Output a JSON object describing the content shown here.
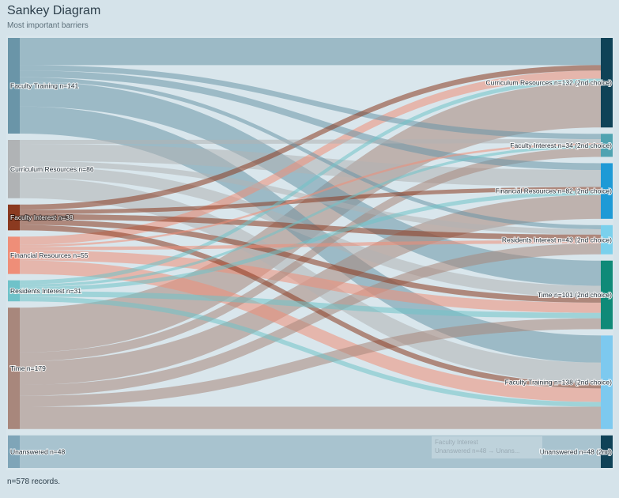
{
  "header": {
    "title": "Sankey Diagram",
    "subtitle": "Most important barriers"
  },
  "footer": {
    "records": "n=578 records."
  },
  "tooltip": {
    "line1": "Faculty Interest",
    "line2": "Unanswered n=48 → Unans..."
  },
  "chart_data": {
    "type": "sankey",
    "total": 578,
    "sources": [
      {
        "id": "s_ft",
        "label": "Faculty Training n=141",
        "value": 141,
        "color": "#6a95a8"
      },
      {
        "id": "s_cr",
        "label": "Curriculum Resources n=86",
        "value": 86,
        "color": "#b0b3b5"
      },
      {
        "id": "s_fi",
        "label": "Faculty Interest n=38",
        "value": 38,
        "color": "#8b3a20",
        "dark": true
      },
      {
        "id": "s_fr",
        "label": "Financial Resources n=55",
        "value": 55,
        "color": "#ef8e78"
      },
      {
        "id": "s_ri",
        "label": "Residents Interest n=31",
        "value": 31,
        "color": "#6fc2c9"
      },
      {
        "id": "s_t",
        "label": "Time n=179",
        "value": 179,
        "color": "#a8877c"
      },
      {
        "id": "s_u",
        "label": "Unanswered n=48",
        "value": 48,
        "color": "#7fa5b8"
      }
    ],
    "targets": [
      {
        "id": "t_cr",
        "label": "Curriculum Resources n=132 (2nd choice)",
        "value": 132,
        "color": "#0f4257"
      },
      {
        "id": "t_fi",
        "label": "Faculty Interest n=34 (2nd choice)",
        "value": 34,
        "color": "#4fa3b1"
      },
      {
        "id": "t_fr",
        "label": "Financial Resources n=82 (2nd choice)",
        "value": 82,
        "color": "#1e9ad6"
      },
      {
        "id": "t_ri",
        "label": "Residents Interest n=43 (2nd choice)",
        "value": 43,
        "color": "#7ad0ec"
      },
      {
        "id": "t_t",
        "label": "Time n=101 (2nd choice)",
        "value": 101,
        "color": "#0f8a78"
      },
      {
        "id": "t_ft",
        "label": "Faculty Training n=138 (2nd choice)",
        "value": 138,
        "color": "#7dc9ef"
      },
      {
        "id": "t_u",
        "label": "Unanswered n=48 (2nd)",
        "value": 48,
        "color": "#0f4257"
      }
    ],
    "flows": [
      {
        "source": "s_ft",
        "target": "t_cr",
        "value": 40
      },
      {
        "source": "s_ft",
        "target": "t_fi",
        "value": 8
      },
      {
        "source": "s_ft",
        "target": "t_fr",
        "value": 10
      },
      {
        "source": "s_ft",
        "target": "t_ri",
        "value": 6
      },
      {
        "source": "s_ft",
        "target": "t_t",
        "value": 37
      },
      {
        "source": "s_ft",
        "target": "t_ft",
        "value": 40
      },
      {
        "source": "s_cr",
        "target": "t_fi",
        "value": 6
      },
      {
        "source": "s_cr",
        "target": "t_fr",
        "value": 25
      },
      {
        "source": "s_cr",
        "target": "t_ri",
        "value": 8
      },
      {
        "source": "s_cr",
        "target": "t_t",
        "value": 17
      },
      {
        "source": "s_cr",
        "target": "t_ft",
        "value": 30
      },
      {
        "source": "s_fi",
        "target": "t_cr",
        "value": 8
      },
      {
        "source": "s_fi",
        "target": "t_fr",
        "value": 6
      },
      {
        "source": "s_fi",
        "target": "t_ri",
        "value": 8
      },
      {
        "source": "s_fi",
        "target": "t_t",
        "value": 8
      },
      {
        "source": "s_fi",
        "target": "t_ft",
        "value": 8
      },
      {
        "source": "s_fr",
        "target": "t_cr",
        "value": 12
      },
      {
        "source": "s_fr",
        "target": "t_fi",
        "value": 3
      },
      {
        "source": "s_fr",
        "target": "t_ri",
        "value": 5
      },
      {
        "source": "s_fr",
        "target": "t_t",
        "value": 15
      },
      {
        "source": "s_fr",
        "target": "t_ft",
        "value": 20
      },
      {
        "source": "s_ri",
        "target": "t_cr",
        "value": 6
      },
      {
        "source": "s_ri",
        "target": "t_fi",
        "value": 4
      },
      {
        "source": "s_ri",
        "target": "t_fr",
        "value": 6
      },
      {
        "source": "s_ri",
        "target": "t_t",
        "value": 8
      },
      {
        "source": "s_ri",
        "target": "t_ft",
        "value": 7
      },
      {
        "source": "s_t",
        "target": "t_cr",
        "value": 66
      },
      {
        "source": "s_t",
        "target": "t_fi",
        "value": 13
      },
      {
        "source": "s_t",
        "target": "t_fr",
        "value": 35
      },
      {
        "source": "s_t",
        "target": "t_ri",
        "value": 16
      },
      {
        "source": "s_t",
        "target": "t_t",
        "value": 16
      },
      {
        "source": "s_t",
        "target": "t_ft",
        "value": 33
      },
      {
        "source": "s_u",
        "target": "t_u",
        "value": 48
      }
    ]
  }
}
